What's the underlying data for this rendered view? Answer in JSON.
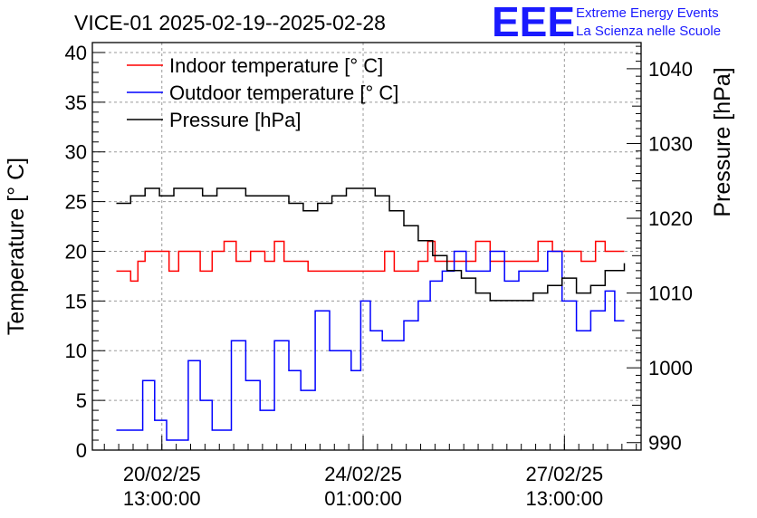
{
  "chart_data": {
    "type": "line",
    "title": "VICE-01 2025-02-19--2025-02-28",
    "logo": {
      "mark": "EEE",
      "line1": "Extreme Energy Events",
      "line2": "La Scienza nelle Scuole",
      "color": "#1a1aff"
    },
    "ylabel": "Temperature [° C]",
    "y2label": "Pressure [hPa]",
    "ylim": [
      0,
      41
    ],
    "y2lim": [
      989,
      1043.5
    ],
    "xlim": [
      "2025-02-19 08:00",
      "2025-02-28 21:00"
    ],
    "yticks": [
      "0",
      "5",
      "10",
      "15",
      "20",
      "25",
      "30",
      "35",
      "40"
    ],
    "y2ticks": [
      "990",
      "1000",
      "1010",
      "1020",
      "1030",
      "1040"
    ],
    "xticks": [
      {
        "at": "2025-02-20 13:00",
        "line1": "20/02/25",
        "line2": "13:00:00"
      },
      {
        "at": "2025-02-24 01:00",
        "line1": "24/02/25",
        "line2": "01:00:00"
      },
      {
        "at": "2025-02-27 13:00",
        "line1": "27/02/25",
        "line2": "13:00:00"
      }
    ],
    "grid": true,
    "legend_position": "top-left",
    "series": [
      {
        "name": "Indoor temperature [° C]",
        "color": "#ff0000",
        "axis": "left",
        "x": [
          "2025-02-19 18:00",
          "2025-02-19 21:00",
          "2025-02-20 00:00",
          "2025-02-20 03:00",
          "2025-02-20 06:00",
          "2025-02-20 12:00",
          "2025-02-20 16:00",
          "2025-02-20 20:00",
          "2025-02-21 00:00",
          "2025-02-21 05:00",
          "2025-02-21 10:00",
          "2025-02-21 15:00",
          "2025-02-21 20:00",
          "2025-02-22 02:00",
          "2025-02-22 08:00",
          "2025-02-22 12:00",
          "2025-02-22 16:00",
          "2025-02-22 20:00",
          "2025-02-23 02:00",
          "2025-02-23 12:00",
          "2025-02-24 00:00",
          "2025-02-24 06:00",
          "2025-02-24 10:00",
          "2025-02-24 14:00",
          "2025-02-24 18:00",
          "2025-02-25 00:00",
          "2025-02-25 04:00",
          "2025-02-25 07:00",
          "2025-02-25 12:00",
          "2025-02-25 18:00",
          "2025-02-26 00:00",
          "2025-02-26 06:00",
          "2025-02-26 10:00",
          "2025-02-26 14:00",
          "2025-02-26 20:00",
          "2025-02-27 02:00",
          "2025-02-27 08:00",
          "2025-02-27 14:00",
          "2025-02-27 20:00",
          "2025-02-28 02:00",
          "2025-02-28 06:00",
          "2025-02-28 09:00",
          "2025-02-28 14:00"
        ],
        "y": [
          18,
          18,
          17,
          19,
          20,
          20,
          18,
          20,
          20,
          18,
          20,
          21,
          19,
          20,
          19,
          21,
          19,
          19,
          18,
          18,
          18,
          18,
          20,
          18,
          18,
          19,
          21,
          19,
          19,
          19,
          21,
          19,
          19,
          19,
          19,
          21,
          20,
          20,
          19,
          21,
          20,
          20,
          20
        ]
      },
      {
        "name": "Outdoor temperature [° C]",
        "color": "#0000ff",
        "axis": "left",
        "x": [
          "2025-02-19 18:00",
          "2025-02-20 00:00",
          "2025-02-20 05:00",
          "2025-02-20 10:00",
          "2025-02-20 15:00",
          "2025-02-21 00:00",
          "2025-02-21 05:00",
          "2025-02-21 10:00",
          "2025-02-21 18:00",
          "2025-02-22 00:00",
          "2025-02-22 06:00",
          "2025-02-22 12:00",
          "2025-02-22 18:00",
          "2025-02-22 23:00",
          "2025-02-23 05:00",
          "2025-02-23 11:00",
          "2025-02-23 17:00",
          "2025-02-23 20:00",
          "2025-02-24 00:00",
          "2025-02-24 04:00",
          "2025-02-24 09:00",
          "2025-02-24 13:00",
          "2025-02-24 18:00",
          "2025-02-25 00:00",
          "2025-02-25 05:00",
          "2025-02-25 10:00",
          "2025-02-25 15:00",
          "2025-02-25 20:00",
          "2025-02-26 00:00",
          "2025-02-26 06:00",
          "2025-02-26 12:00",
          "2025-02-26 18:00",
          "2025-02-27 00:00",
          "2025-02-27 06:00",
          "2025-02-27 12:00",
          "2025-02-27 18:00",
          "2025-02-28 00:00",
          "2025-02-28 06:00",
          "2025-02-28 10:00",
          "2025-02-28 14:00"
        ],
        "y": [
          2,
          2,
          7,
          3,
          1,
          9,
          5,
          2,
          11,
          7,
          4,
          11,
          8,
          6,
          14,
          10,
          10,
          8,
          15,
          12,
          11,
          11,
          13,
          15,
          17,
          18,
          20,
          18,
          18,
          20,
          17,
          18,
          18,
          20,
          15,
          12,
          14,
          16,
          13,
          13
        ]
      },
      {
        "name": "Pressure [hPa]",
        "color": "#000000",
        "axis": "right",
        "x": [
          "2025-02-19 18:00",
          "2025-02-20 00:00",
          "2025-02-20 06:00",
          "2025-02-20 12:00",
          "2025-02-20 18:00",
          "2025-02-21 00:00",
          "2025-02-21 06:00",
          "2025-02-21 12:00",
          "2025-02-21 18:00",
          "2025-02-22 00:00",
          "2025-02-22 06:00",
          "2025-02-22 12:00",
          "2025-02-22 18:00",
          "2025-02-23 00:00",
          "2025-02-23 06:00",
          "2025-02-23 12:00",
          "2025-02-23 18:00",
          "2025-02-24 00:00",
          "2025-02-24 06:00",
          "2025-02-24 12:00",
          "2025-02-24 18:00",
          "2025-02-25 00:00",
          "2025-02-25 06:00",
          "2025-02-25 12:00",
          "2025-02-25 18:00",
          "2025-02-26 00:00",
          "2025-02-26 06:00",
          "2025-02-26 12:00",
          "2025-02-26 18:00",
          "2025-02-27 00:00",
          "2025-02-27 06:00",
          "2025-02-27 12:00",
          "2025-02-27 18:00",
          "2025-02-28 00:00",
          "2025-02-28 06:00",
          "2025-02-28 12:00",
          "2025-02-28 14:00"
        ],
        "y": [
          1022,
          1023,
          1024,
          1023,
          1024,
          1024,
          1023,
          1024,
          1024,
          1023,
          1023,
          1023,
          1022,
          1021,
          1022,
          1023,
          1024,
          1024,
          1023,
          1021,
          1019,
          1017,
          1015,
          1013,
          1012,
          1010,
          1009,
          1009,
          1009,
          1010,
          1011,
          1012,
          1010,
          1011,
          1013,
          1013,
          1014
        ]
      }
    ]
  }
}
